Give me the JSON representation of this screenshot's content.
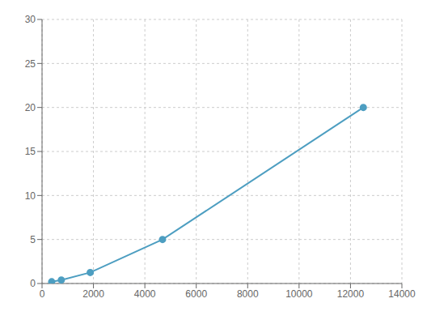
{
  "chart_data": {
    "type": "line",
    "x": [
      375,
      750,
      1875,
      4687.5,
      12500
    ],
    "values": [
      0.2,
      0.4,
      1.25,
      5.0,
      20.0
    ],
    "color": "#4d9ec1",
    "marker": "circle",
    "xlim": [
      0,
      14000
    ],
    "ylim": [
      0,
      30
    ],
    "xticks": [
      0,
      2000,
      4000,
      6000,
      8000,
      10000,
      12000,
      14000
    ],
    "yticks": [
      0,
      5,
      10,
      15,
      20,
      25,
      30
    ],
    "grid": true
  }
}
